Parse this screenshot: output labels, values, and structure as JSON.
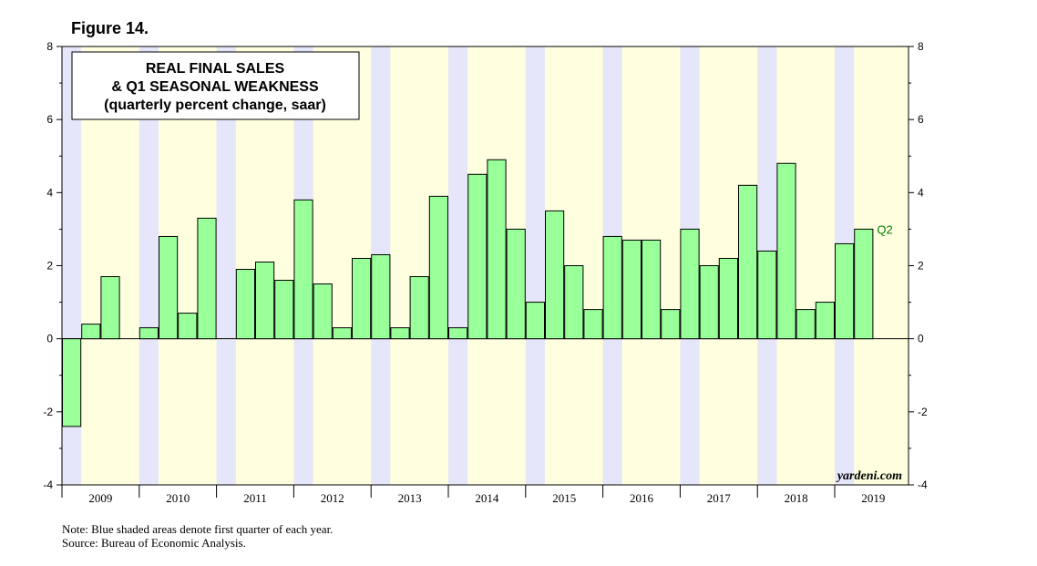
{
  "figure_label": "Figure 14.",
  "title_lines": [
    "REAL FINAL SALES",
    "& Q1 SEASONAL WEAKNESS",
    "(quarterly percent change, saar)"
  ],
  "watermark": "yardeni.com",
  "notes": [
    "Note: Blue shaded areas denote first quarter of each year.",
    "Source: Bureau of Economic Analysis."
  ],
  "colors": {
    "bar_fill": "#99ff99",
    "bar_stroke": "#000000",
    "q1_shade": "#e6e6fa",
    "year_shade": "#ffffe0",
    "last_label": "#008000"
  },
  "chart_data": {
    "type": "bar",
    "title": "REAL FINAL SALES & Q1 SEASONAL WEAKNESS",
    "subtitle": "(quarterly percent change, saar)",
    "xlabel": "",
    "ylabel": "",
    "ylim": [
      -4,
      8
    ],
    "yticks": [
      -4,
      -2,
      0,
      2,
      4,
      6,
      8
    ],
    "ytick_labels": [
      "-4",
      "-2",
      "0",
      "2",
      "4",
      "6",
      "8"
    ],
    "years": [
      "2009",
      "2010",
      "2011",
      "2012",
      "2013",
      "2014",
      "2015",
      "2016",
      "2017",
      "2018",
      "2019"
    ],
    "categories": [
      "2009Q1",
      "2009Q2",
      "2009Q3",
      "2009Q4",
      "2010Q1",
      "2010Q2",
      "2010Q3",
      "2010Q4",
      "2011Q1",
      "2011Q2",
      "2011Q3",
      "2011Q4",
      "2012Q1",
      "2012Q2",
      "2012Q3",
      "2012Q4",
      "2013Q1",
      "2013Q2",
      "2013Q3",
      "2013Q4",
      "2014Q1",
      "2014Q2",
      "2014Q3",
      "2014Q4",
      "2015Q1",
      "2015Q2",
      "2015Q3",
      "2015Q4",
      "2016Q1",
      "2016Q2",
      "2016Q3",
      "2016Q4",
      "2017Q1",
      "2017Q2",
      "2017Q3",
      "2017Q4",
      "2018Q1",
      "2018Q2",
      "2018Q3",
      "2018Q4",
      "2019Q1",
      "2019Q2"
    ],
    "values": [
      -2.4,
      0.4,
      1.7,
      0.0,
      0.3,
      2.8,
      0.7,
      3.3,
      0.0,
      1.9,
      2.1,
      1.6,
      3.8,
      1.5,
      0.3,
      2.2,
      2.3,
      0.3,
      1.7,
      3.9,
      0.3,
      4.5,
      4.9,
      3.0,
      1.0,
      3.5,
      2.0,
      0.8,
      2.8,
      2.7,
      2.7,
      0.8,
      3.0,
      2.0,
      2.2,
      4.2,
      2.4,
      4.8,
      0.8,
      1.0,
      2.6,
      3.0
    ],
    "last_point_label": "Q2",
    "shading": "first quarter of each year"
  }
}
